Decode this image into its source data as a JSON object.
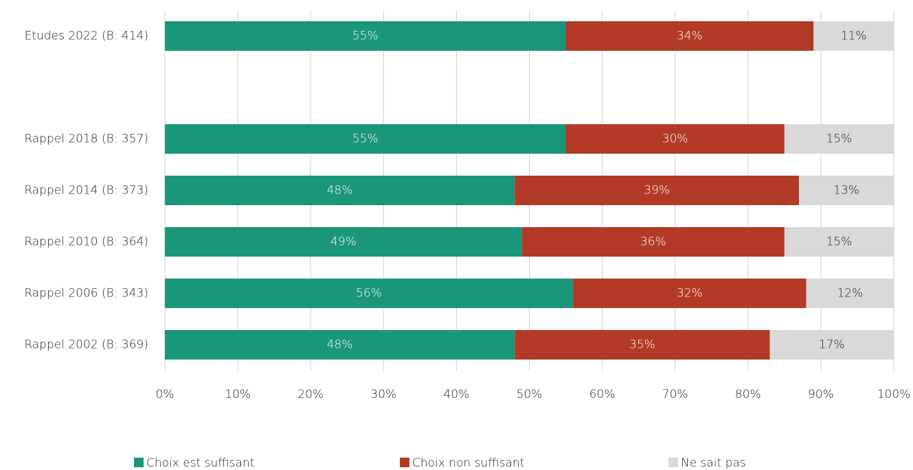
{
  "chart_data": {
    "type": "stacked_barh",
    "categories": [
      "Etudes 2022 (B: 414)",
      null,
      "Rappel 2018 (B: 357)",
      "Rappel 2014 (B: 373)",
      "Rappel 2010 (B: 364)",
      "Rappel 2006 (B: 343)",
      "Rappel 2002 (B: 369)"
    ],
    "series": [
      {
        "name": "Choix est suffisant",
        "color": "#1a967a",
        "values": [
          55,
          null,
          55,
          48,
          49,
          56,
          48
        ],
        "value_labels": [
          "55%",
          null,
          "55%",
          "48%",
          "49%",
          "56%",
          "48%"
        ]
      },
      {
        "name": "Choix non suffisant",
        "color": "#b33a26",
        "values": [
          34,
          null,
          30,
          39,
          36,
          32,
          35
        ],
        "value_labels": [
          "34%",
          null,
          "30%",
          "39%",
          "36%",
          "32%",
          "35%"
        ]
      },
      {
        "name": "Ne sait pas",
        "color": "#d9d9d9",
        "values": [
          11,
          null,
          15,
          13,
          15,
          12,
          17
        ],
        "value_labels": [
          "11%",
          null,
          "15%",
          "13%",
          "15%",
          "12%",
          "17%"
        ]
      }
    ],
    "xlim": [
      0,
      100
    ],
    "xticks": [
      {
        "value": 0,
        "label": "0%"
      },
      {
        "value": 10,
        "label": "10%"
      },
      {
        "value": 20,
        "label": "20%"
      },
      {
        "value": 30,
        "label": "30%"
      },
      {
        "value": 40,
        "label": "40%"
      },
      {
        "value": 50,
        "label": "50%"
      },
      {
        "value": 60,
        "label": "60%"
      },
      {
        "value": 70,
        "label": "70%"
      },
      {
        "value": 80,
        "label": "80%"
      },
      {
        "value": 90,
        "label": "90%"
      },
      {
        "value": 100,
        "label": "100%"
      }
    ],
    "grid": true,
    "legend": "bottom"
  }
}
